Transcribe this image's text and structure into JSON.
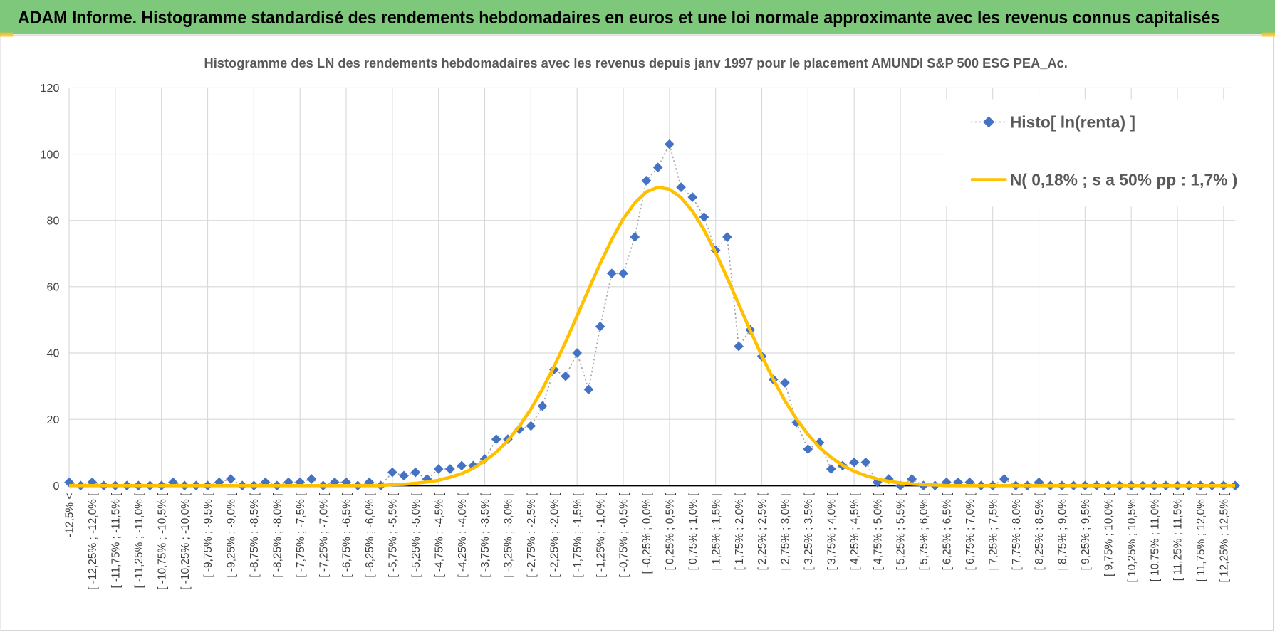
{
  "chart_data": {
    "type": "line",
    "title": "ADAM Informe. Histogramme standardisé des rendements hebdomadaires en euros et une loi normale approximante avec les revenus connus capitalisés",
    "subtitle": "Histogramme  des LN des rendements hebdomadaires avec les revenus depuis janv 1997 pour le placement AMUNDI S&P 500 ESG PEA_Ac.",
    "categories": [
      "-12,5% <",
      null,
      "[ -12,25% ; -12,0% [",
      null,
      "[ -11,75% ; -11,5% [",
      null,
      "[ -11,25% ; -11,0% [",
      null,
      "[ -10,75% ; -10,5% [",
      null,
      "[ -10,25% ; -10,0% [",
      null,
      "[ -9,75% ; -9,5% [",
      null,
      "[ -9,25% ; -9,0% [",
      null,
      "[ -8,75% ; -8,5% [",
      null,
      "[ -8,25% ; -8,0% [",
      null,
      "[ -7,75% ; -7,5% [",
      null,
      "[ -7,25% ; -7,0% [",
      null,
      "[ -6,75% ; -6,5% [",
      null,
      "[ -6,25% ; -6,0% [",
      null,
      "[ -5,75% ; -5,5% [",
      null,
      "[ -5,25% ; -5,0% [",
      null,
      "[ -4,75% ; -4,5% [",
      null,
      "[ -4,25% ; -4,0% [",
      null,
      "[ -3,75% ; -3,5% [",
      null,
      "[ -3,25% ; -3,0% [",
      null,
      "[ -2,75% ; -2,5% [",
      null,
      "[ -2,25% ; -2,0% [",
      null,
      "[ -1,75% ; -1,5% [",
      null,
      "[ -1,25% ; -1,0% [",
      null,
      "[ -0,75% ; -0,5% [",
      null,
      "[ -0,25% ; 0,0% [",
      null,
      "[ 0,25% ; 0,5% [",
      null,
      "[ 0,75% ; 1,0% [",
      null,
      "[ 1,25% ; 1,5% [",
      null,
      "[ 1,75% ; 2,0% [",
      null,
      "[ 2,25% ; 2,5% [",
      null,
      "[ 2,75% ; 3,0% [",
      null,
      "[ 3,25% ; 3,5% [",
      null,
      "[ 3,75% ; 4,0% [",
      null,
      "[ 4,25% ; 4,5% [",
      null,
      "[ 4,75% ; 5,0% [",
      null,
      "[ 5,25% ; 5,5% [",
      null,
      "[ 5,75% ; 6,0% [",
      null,
      "[ 6,25% ; 6,5% [",
      null,
      "[ 6,75% ; 7,0% [",
      null,
      "[ 7,25% ; 7,5% [",
      null,
      "[ 7,75% ; 8,0% [",
      null,
      "[ 8,25% ; 8,5% [",
      null,
      "[ 8,75% ; 9,0% [",
      null,
      "[ 9,25% ; 9,5% [",
      null,
      "[ 9,75% ; 10,0% [",
      null,
      "[ 10,25% ; 10,5% [",
      null,
      "[ 10,75% ; 11,0% [",
      null,
      "[ 11,25% ; 11,5% [",
      null,
      "[ 11,75% ; 12,0% [",
      null,
      "[ 12,25% ; 12,5% [",
      null
    ],
    "series": [
      {
        "name": "Histo[ ln(renta) ]",
        "color": "#4472c4",
        "line_color": "#a5a5a5",
        "marker": "diamond",
        "dashed": true,
        "values": [
          1,
          0,
          1,
          0,
          0,
          0,
          0,
          0,
          0,
          1,
          0,
          0,
          0,
          1,
          2,
          0,
          0,
          1,
          0,
          1,
          1,
          2,
          0,
          1,
          1,
          0,
          1,
          0,
          4,
          3,
          4,
          2,
          5,
          5,
          6,
          6,
          8,
          14,
          14,
          17,
          18,
          24,
          35,
          33,
          40,
          29,
          48,
          64,
          64,
          75,
          92,
          96,
          103,
          90,
          87,
          81,
          71,
          75,
          42,
          47,
          39,
          32,
          31,
          19,
          11,
          13,
          5,
          6,
          7,
          7,
          1,
          2,
          0,
          2,
          0,
          0,
          1,
          1,
          1,
          0,
          0,
          2,
          0,
          0,
          1,
          0,
          0,
          0,
          0,
          0,
          0,
          0,
          0,
          0,
          0,
          0,
          0,
          0,
          0,
          0,
          0,
          0
        ]
      },
      {
        "name": "N( 0,18% ; s a 50% pp : 1,7% )",
        "color": "#ffc000",
        "values": [
          0,
          0,
          0,
          0,
          0,
          0,
          0,
          0,
          0,
          0,
          0,
          0,
          0,
          0,
          0,
          0,
          0,
          0,
          0,
          0,
          0,
          0,
          0,
          0,
          0,
          0,
          0,
          0,
          0.3,
          0.4,
          0.7,
          1.1,
          1.6,
          2.5,
          3.6,
          5.2,
          7.4,
          10.1,
          13.6,
          17.9,
          23.1,
          29.1,
          35.9,
          43.3,
          51.2,
          59.2,
          67.0,
          74.2,
          80.5,
          85.3,
          88.6,
          90.0,
          89.4,
          86.9,
          82.8,
          77.1,
          70.3,
          62.7,
          54.7,
          46.8,
          39.1,
          32.0,
          25.6,
          20.1,
          15.4,
          11.5,
          8.5,
          6.1,
          4.3,
          3.0,
          2.0,
          1.3,
          0.8,
          0.5,
          0.3,
          0.2,
          0,
          0,
          0,
          0,
          0,
          0,
          0,
          0,
          0,
          0,
          0,
          0,
          0,
          0,
          0,
          0,
          0,
          0,
          0,
          0,
          0,
          0,
          0,
          0,
          0,
          0
        ]
      }
    ],
    "ylim": [
      0,
      120
    ],
    "yticks": [
      0,
      20,
      40,
      60,
      80,
      100,
      120
    ],
    "grid": true,
    "legend": "top-right"
  }
}
